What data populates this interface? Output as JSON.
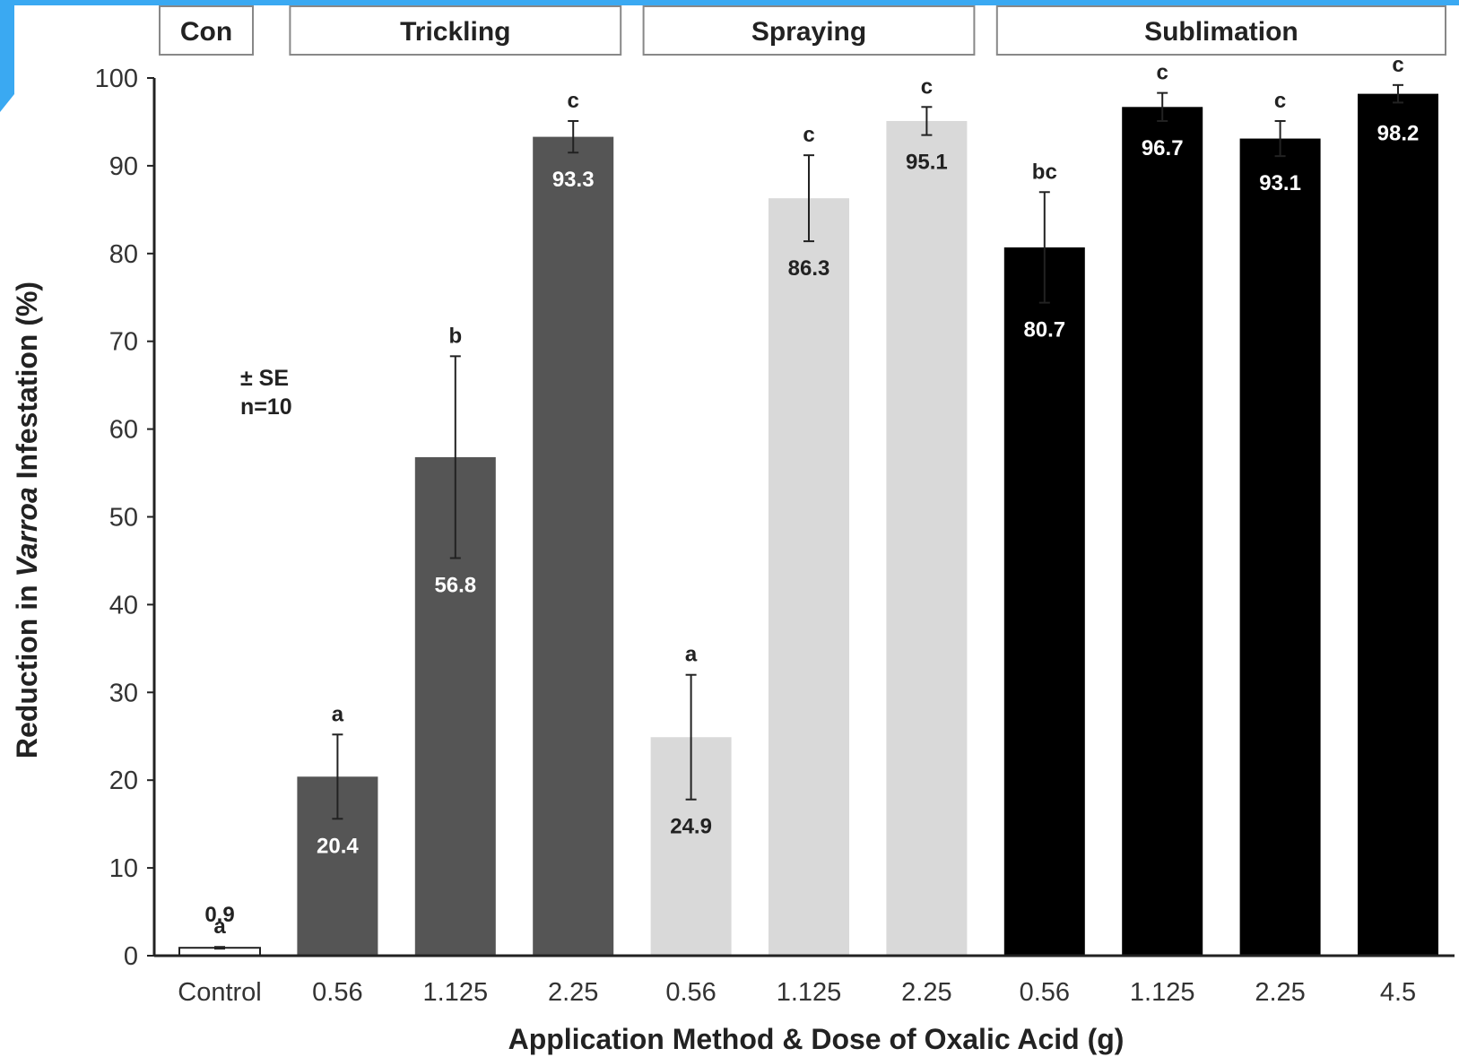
{
  "chart_data": {
    "type": "bar",
    "title": "",
    "xlabel": "Application Method & Dose of Oxalic Acid (g)",
    "ylabel_pre": "Reduction in ",
    "ylabel_italic": "Varroa",
    "ylabel_post": " Infestation (%)",
    "ylim": [
      0,
      100
    ],
    "yticks": [
      0,
      10,
      20,
      30,
      40,
      50,
      60,
      70,
      80,
      90,
      100
    ],
    "annotation_lines": [
      "± SE",
      "n=10"
    ],
    "groups": [
      {
        "label": "Con",
        "color": "#ffffff",
        "label_color": "#222222",
        "bars": [
          {
            "category": "Control",
            "value": 0.9,
            "value_label": "0.9",
            "se": 0.1,
            "sig": "a"
          }
        ]
      },
      {
        "label": "Trickling",
        "color": "#555555",
        "label_color": "#ffffff",
        "bars": [
          {
            "category": "0.56",
            "value": 20.4,
            "value_label": "20.4",
            "se": 4.8,
            "sig": "a"
          },
          {
            "category": "1.125",
            "value": 56.8,
            "value_label": "56.8",
            "se": 11.5,
            "sig": "b"
          },
          {
            "category": "2.25",
            "value": 93.3,
            "value_label": "93.3",
            "se": 1.8,
            "sig": "c"
          }
        ]
      },
      {
        "label": "Spraying",
        "color": "#d9d9d9",
        "label_color": "#222222",
        "bars": [
          {
            "category": "0.56",
            "value": 24.9,
            "value_label": "24.9",
            "se": 7.1,
            "sig": "a"
          },
          {
            "category": "1.125",
            "value": 86.3,
            "value_label": "86.3",
            "se": 4.9,
            "sig": "c"
          },
          {
            "category": "2.25",
            "value": 95.1,
            "value_label": "95.1",
            "se": 1.6,
            "sig": "c"
          }
        ]
      },
      {
        "label": "Sublimation",
        "color": "#000000",
        "label_color": "#ffffff",
        "bars": [
          {
            "category": "0.56",
            "value": 80.7,
            "value_label": "80.7",
            "se": 6.3,
            "sig": "bc"
          },
          {
            "category": "1.125",
            "value": 96.7,
            "value_label": "96.7",
            "se": 1.6,
            "sig": "c"
          },
          {
            "category": "2.25",
            "value": 93.1,
            "value_label": "93.1",
            "se": 2.0,
            "sig": "c"
          },
          {
            "category": "4.5",
            "value": 98.2,
            "value_label": "98.2",
            "se": 1.0,
            "sig": "c"
          }
        ]
      }
    ]
  }
}
